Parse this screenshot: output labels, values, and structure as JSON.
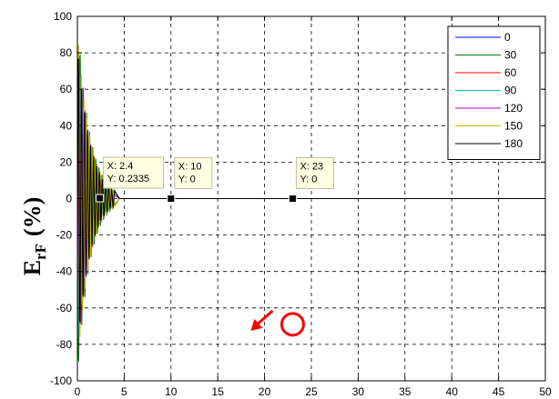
{
  "chart_data": {
    "type": "line",
    "title": "",
    "xlabel": "",
    "ylabel": "E",
    "ylabel_sub": "rF",
    "ylabel_unit": "(%)",
    "xlim": [
      0,
      50
    ],
    "ylim": [
      -100,
      100
    ],
    "xticks": [
      0,
      5,
      10,
      15,
      20,
      25,
      30,
      35,
      40,
      45,
      50
    ],
    "yticks": [
      -100,
      -80,
      -60,
      -40,
      -20,
      0,
      20,
      40,
      60,
      80,
      100
    ],
    "grid": true,
    "legend_position": "top-right",
    "series": [
      {
        "name": "0",
        "color": "#0000ff",
        "amplitude": 60,
        "frequency": 3.3,
        "phase": 0.0
      },
      {
        "name": "30",
        "color": "#008000",
        "amplitude": 100,
        "frequency": 3.0,
        "phase": 0.6
      },
      {
        "name": "60",
        "color": "#ff0000",
        "amplitude": 70,
        "frequency": 3.6,
        "phase": 1.3
      },
      {
        "name": "90",
        "color": "#00bfbf",
        "amplitude": 80,
        "frequency": 2.8,
        "phase": 2.0
      },
      {
        "name": "120",
        "color": "#bf00bf",
        "amplitude": 90,
        "frequency": 3.2,
        "phase": 2.7
      },
      {
        "name": "150",
        "color": "#bfbf00",
        "amplitude": 95,
        "frequency": 3.5,
        "phase": 3.4
      },
      {
        "name": "180",
        "color": "#000000",
        "amplitude": 85,
        "frequency": 3.1,
        "phase": 4.1
      }
    ],
    "datatips": [
      {
        "x": 2.4,
        "y": 0.2335,
        "line1": "X: 2.4",
        "line2": "Y: 0.2335"
      },
      {
        "x": 10,
        "y": 0,
        "line1": "X: 10",
        "line2": "Y: 0"
      },
      {
        "x": 23,
        "y": 0,
        "line1": "X: 23",
        "line2": "Y: 0"
      }
    ],
    "annotation": {
      "arrow_color": "#ff0000",
      "circle_color": "#ff0000",
      "x": 23,
      "y": -69
    }
  }
}
